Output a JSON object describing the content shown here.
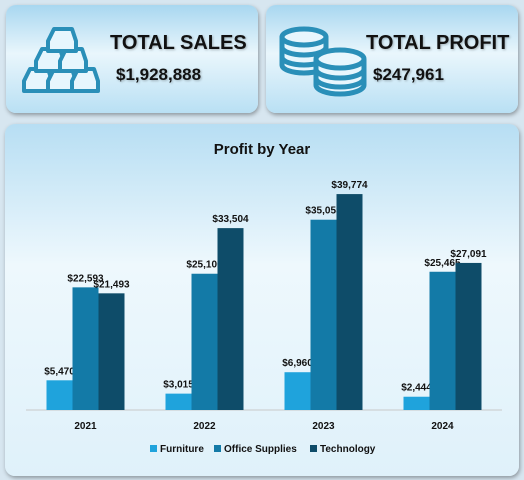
{
  "kpis": {
    "sales": {
      "title": "TOTAL SALES",
      "value": "$1,928,888",
      "icon": "gold-bars-icon"
    },
    "profit": {
      "title": "TOTAL PROFIT",
      "value": "$247,961",
      "icon": "coins-stack-icon"
    }
  },
  "colors": {
    "furniture": "#1fa3dc",
    "office_supplies": "#137aa7",
    "technology": "#0e4c69",
    "icon": "#2a8fb8"
  },
  "chart_data": {
    "type": "bar",
    "title": "Profit by Year",
    "categories": [
      "2021",
      "2022",
      "2023",
      "2024"
    ],
    "series": [
      {
        "name": "Furniture",
        "values": [
          5470,
          3015,
          6960,
          2444
        ],
        "labels": [
          "$5,470",
          "$3,015",
          "$6,960",
          "$2,444"
        ]
      },
      {
        "name": "Office Supplies",
        "values": [
          22593,
          25100,
          35053,
          25465
        ],
        "labels": [
          "$22,593",
          "$25,100",
          "$35,053",
          "$25,465"
        ]
      },
      {
        "name": "Technology",
        "values": [
          21493,
          33504,
          39774,
          27091
        ],
        "labels": [
          "$21,493",
          "$33,504",
          "$39,774",
          "$27,091"
        ]
      }
    ],
    "ylim": [
      0,
      42000
    ],
    "legend": "bottom",
    "grid": false
  }
}
